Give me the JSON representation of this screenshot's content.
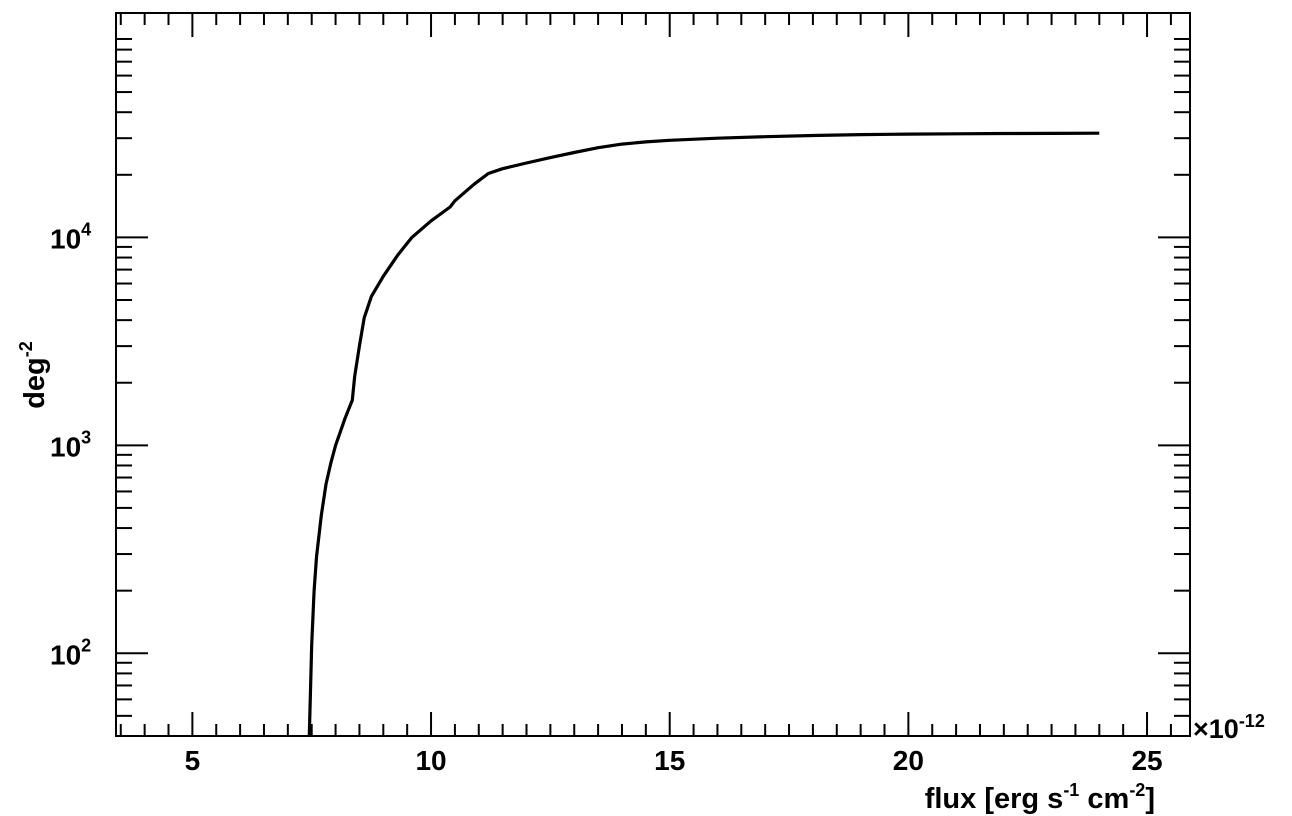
{
  "chart_data": {
    "type": "line",
    "title": "",
    "xlabel": {
      "parts": [
        {
          "text": "flux [erg s",
          "sup": false
        },
        {
          "text": "-1",
          "sup": true
        },
        {
          "text": " cm",
          "sup": false
        },
        {
          "text": "-2",
          "sup": true
        },
        {
          "text": "]",
          "sup": false
        }
      ]
    },
    "ylabel": {
      "parts": [
        {
          "text": "deg",
          "sup": false
        },
        {
          "text": "-2",
          "sup": true
        }
      ]
    },
    "x_multiplier": {
      "symbol": "×10",
      "exponent": "-12"
    },
    "xlim": [
      3.4,
      25.9
    ],
    "ylim": [
      40,
      120000
    ],
    "yscale": "log",
    "grid": false,
    "x_major_ticks": [
      5,
      10,
      15,
      20,
      25
    ],
    "x_major_tick_labels": [
      "5",
      "10",
      "15",
      "20",
      "25"
    ],
    "x_minor_ticks": [
      3.5,
      4,
      4.5,
      5.5,
      6,
      6.5,
      7,
      7.5,
      8,
      8.5,
      9,
      9.5,
      10.5,
      11,
      11.5,
      12,
      12.5,
      13,
      13.5,
      14,
      14.5,
      15.5,
      16,
      16.5,
      17,
      17.5,
      18,
      18.5,
      19,
      19.5,
      20.5,
      21,
      21.5,
      22,
      22.5,
      23,
      23.5,
      24,
      24.5,
      25.5
    ],
    "y_major_ticks": [
      {
        "value": 100,
        "base": "10",
        "exp": "2"
      },
      {
        "value": 1000,
        "base": "10",
        "exp": "3"
      },
      {
        "value": 10000,
        "base": "10",
        "exp": "4"
      }
    ],
    "y_minor_ticks": [
      40,
      50,
      60,
      70,
      80,
      90,
      200,
      300,
      400,
      500,
      600,
      700,
      800,
      900,
      2000,
      3000,
      4000,
      5000,
      6000,
      7000,
      8000,
      9000,
      20000,
      30000,
      40000,
      50000,
      60000,
      70000,
      80000,
      90000
    ],
    "series": [
      {
        "x": [
          7.45,
          7.5,
          7.55,
          7.6,
          7.7,
          7.8,
          7.9,
          8.0,
          8.2,
          8.35,
          8.4,
          8.5,
          8.6,
          8.75,
          9.0,
          9.3,
          9.6,
          10.0,
          10.4,
          10.5,
          10.9,
          11.2,
          11.5,
          12.0,
          12.5,
          13.0,
          13.5,
          14.0,
          14.5,
          15.0,
          16.0,
          17.0,
          18.0,
          19.0,
          20.0,
          21.0,
          22.0,
          23.0,
          24.0
        ],
        "y": [
          40,
          110,
          200,
          290,
          460,
          650,
          820,
          1000,
          1350,
          1650,
          2150,
          3000,
          4100,
          5200,
          6500,
          8200,
          10000,
          12000,
          14000,
          15000,
          18000,
          20300,
          21400,
          22800,
          24200,
          25600,
          27000,
          28100,
          28800,
          29300,
          30000,
          30500,
          30900,
          31200,
          31400,
          31500,
          31600,
          31650,
          31700
        ]
      }
    ]
  }
}
